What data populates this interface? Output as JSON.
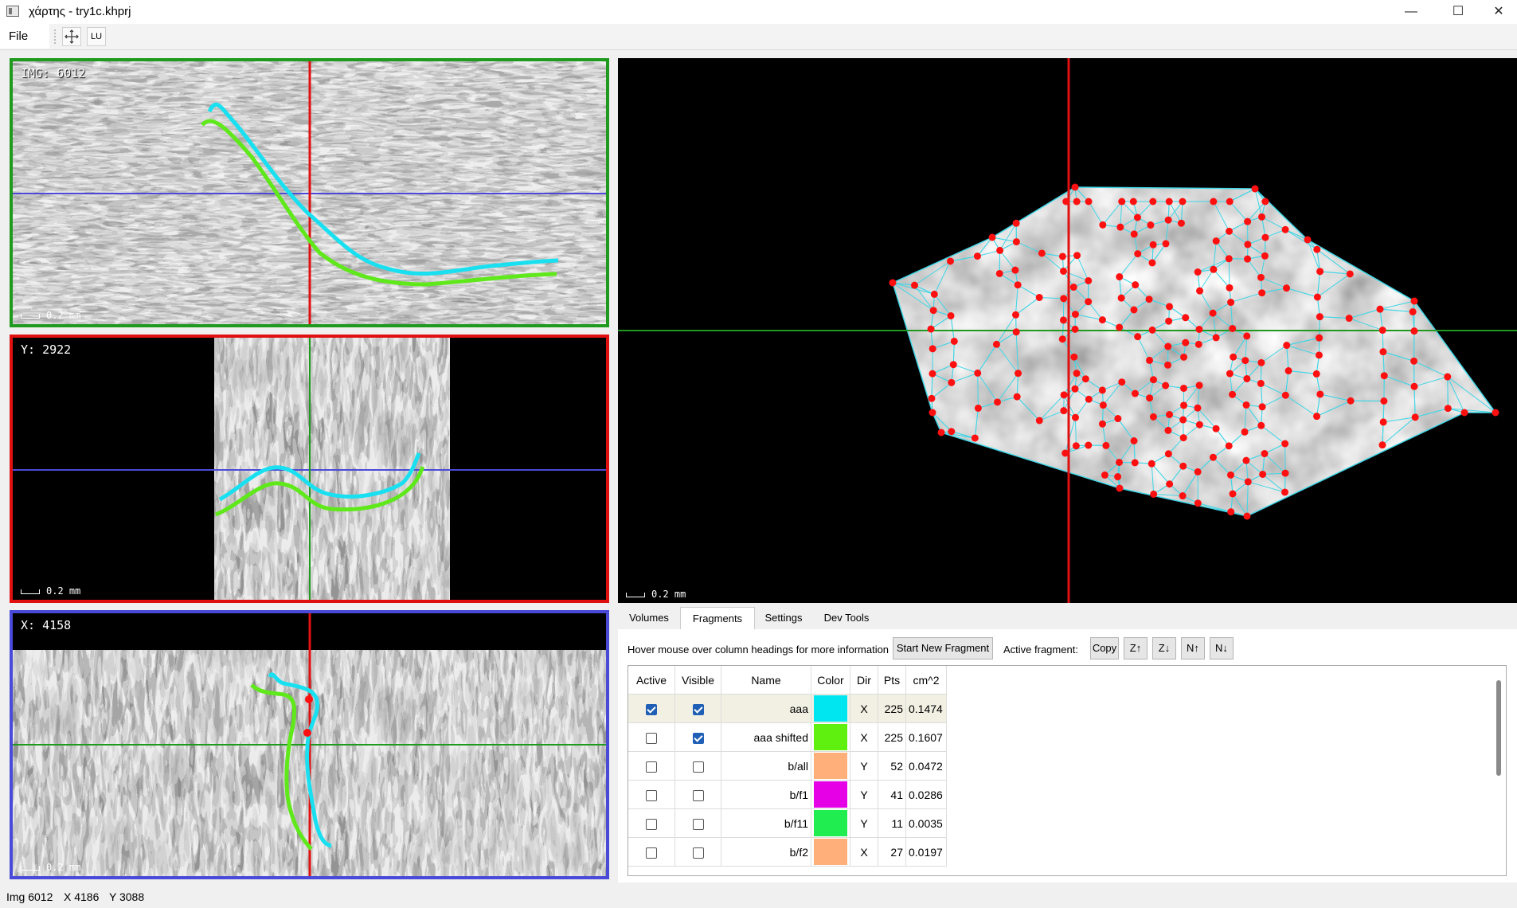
{
  "window": {
    "title": "χάρτης - try1c.khprj",
    "minimize": "—",
    "maximize": "☐",
    "close": "✕"
  },
  "menu": {
    "file": "File",
    "tool_pan_icon": "move-icon",
    "tool_lu": "LU"
  },
  "views": {
    "img": {
      "label": "IMG: 6012",
      "scale": "0.2 mm",
      "border": "#1f9a1f"
    },
    "y": {
      "label": "Y: 2922",
      "scale": "0.2 mm",
      "border": "#e01010"
    },
    "x": {
      "label": "X: 4158",
      "scale": "0.2 mm",
      "border": "#4a4ad8"
    },
    "surface": {
      "scale": "0.2 mm"
    }
  },
  "tabs": [
    "Volumes",
    "Fragments",
    "Settings",
    "Dev Tools"
  ],
  "fragments": {
    "hint": "Hover mouse over column headings for more information",
    "start_button": "Start New Fragment",
    "active_label": "Active fragment:",
    "copy": "Copy",
    "z_up": "Z↑",
    "z_down": "Z↓",
    "n_up": "N↑",
    "n_down": "N↓",
    "headers": [
      "Active",
      "Visible",
      "Name",
      "Color",
      "Dir",
      "Pts",
      "cm^2"
    ],
    "rows": [
      {
        "active": true,
        "visible": true,
        "name": "aaa",
        "color": "#00e6f0",
        "dir": "X",
        "pts": "225",
        "area": "0.1474"
      },
      {
        "active": false,
        "visible": true,
        "name": "aaa shifted",
        "color": "#5ff010",
        "dir": "X",
        "pts": "225",
        "area": "0.1607"
      },
      {
        "active": false,
        "visible": false,
        "name": "b/all",
        "color": "#ffb07a",
        "dir": "Y",
        "pts": "52",
        "area": "0.0472"
      },
      {
        "active": false,
        "visible": false,
        "name": "b/f1",
        "color": "#e600e6",
        "dir": "Y",
        "pts": "41",
        "area": "0.0286"
      },
      {
        "active": false,
        "visible": false,
        "name": "b/f11",
        "color": "#20ee50",
        "dir": "Y",
        "pts": "11",
        "area": "0.0035"
      },
      {
        "active": false,
        "visible": false,
        "name": "b/f2",
        "color": "#ffb07a",
        "dir": "X",
        "pts": "27",
        "area": "0.0197"
      }
    ]
  },
  "status": {
    "img": "Img 6012",
    "x": "X 4186",
    "y": "Y 3088"
  },
  "colors": {
    "cyan_fragment": "#19e0f0",
    "green_fragment": "#5fe81a",
    "crosshair_red": "#e01010",
    "crosshair_blue": "#4a4ad8",
    "crosshair_green": "#1f9a1f",
    "mesh": "#3fd6e6",
    "point": "#ff1010"
  }
}
